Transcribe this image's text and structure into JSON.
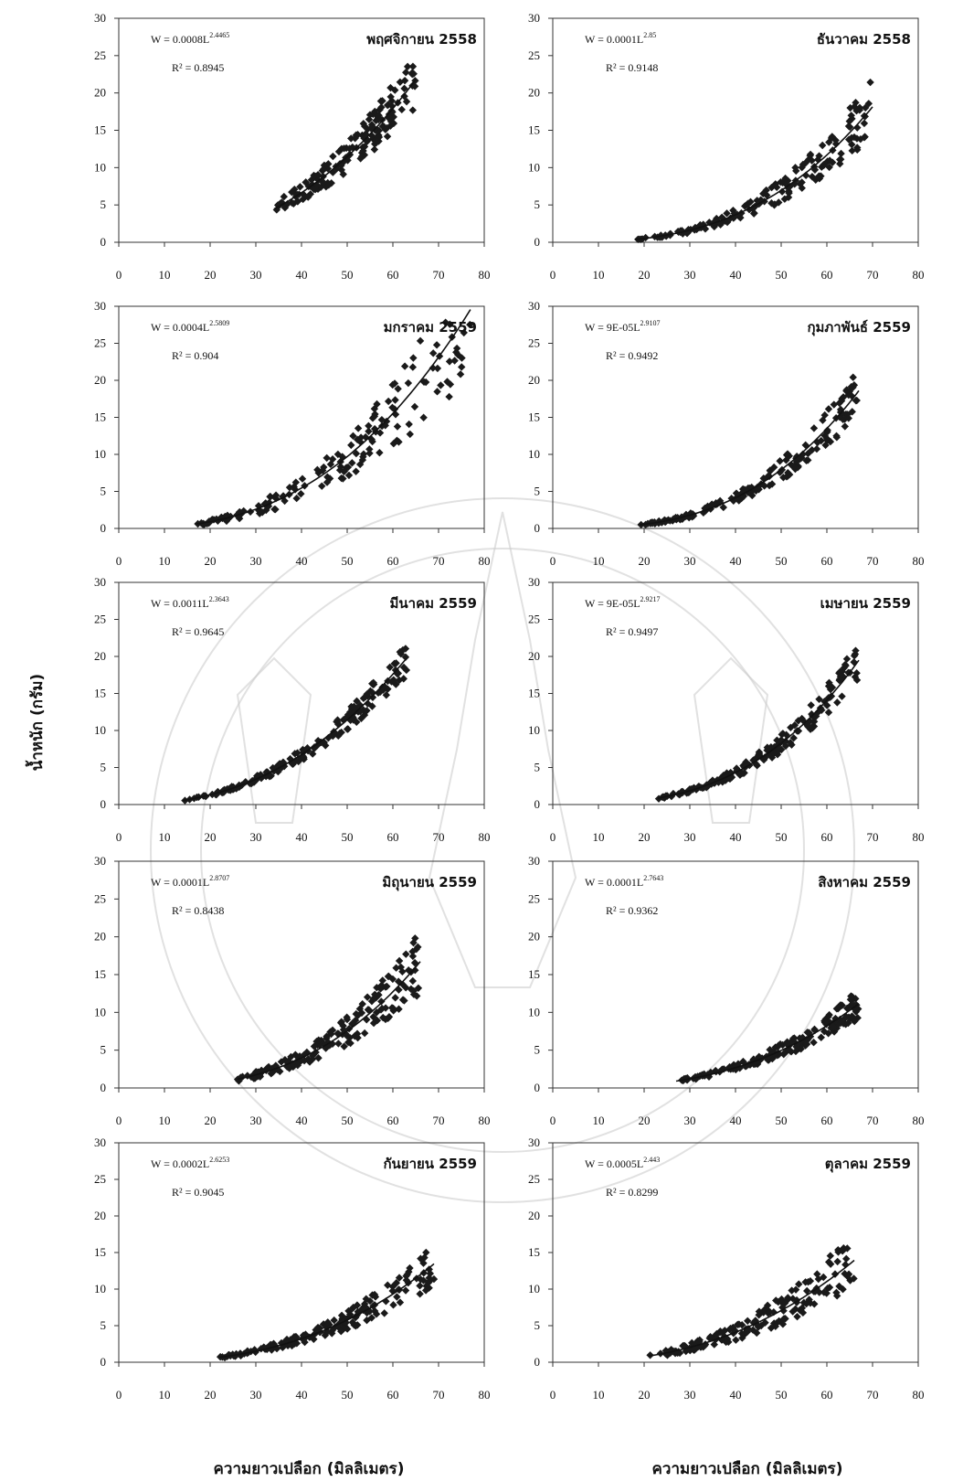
{
  "figure": {
    "ylabel": "น้ำหนัก (กรัม)",
    "xlabel_left": "ความยาวเปลือก (มิลลิเมตร)",
    "xlabel_right": "ความยาวเปลือก (มิลลิเมตร)"
  },
  "chart_data": [
    {
      "type": "scatter",
      "month": "พฤศจิกายน 2558",
      "eq_prefix": "W = 0.0008L",
      "eq_exp": "2.4465",
      "r2": "R² = 0.8945",
      "a": 0.0008,
      "b": 2.4465,
      "xlim": [
        0,
        80
      ],
      "ylim": [
        0,
        30
      ],
      "xticks": [
        0,
        10,
        20,
        30,
        40,
        50,
        60,
        70,
        80
      ],
      "yticks": [
        0,
        5,
        10,
        15,
        20,
        25,
        30
      ],
      "x_range": [
        34,
        65
      ],
      "y_spread": 0.18
    },
    {
      "type": "scatter",
      "month": "ธันวาคม 2558",
      "eq_prefix": "W = 0.0001L",
      "eq_exp": "2.85",
      "r2": "R² = 0.9148",
      "a": 0.0001,
      "b": 2.85,
      "xlim": [
        0,
        80
      ],
      "ylim": [
        0,
        30
      ],
      "xticks": [
        0,
        10,
        20,
        30,
        40,
        50,
        60,
        70,
        80
      ],
      "yticks": [
        0,
        5,
        10,
        15,
        20,
        25,
        30
      ],
      "x_range": [
        18,
        70
      ],
      "y_spread": 0.22
    },
    {
      "type": "scatter",
      "month": "มกราคม 2559",
      "eq_prefix": "W = 0.0004L",
      "eq_exp": "2.5809",
      "r2": "R² = 0.904",
      "a": 0.0004,
      "b": 2.5809,
      "xlim": [
        0,
        80
      ],
      "ylim": [
        0,
        30
      ],
      "xticks": [
        0,
        10,
        20,
        30,
        40,
        50,
        60,
        70,
        80
      ],
      "yticks": [
        0,
        5,
        10,
        15,
        20,
        25,
        30
      ],
      "x_range": [
        17,
        78
      ],
      "y_spread": 0.3
    },
    {
      "type": "scatter",
      "month": "กุมภาพันธ์ 2559",
      "eq_prefix": "W = 9E-05L",
      "eq_exp": "2.9107",
      "r2": "R² = 0.9492",
      "a": 9e-05,
      "b": 2.9107,
      "xlim": [
        0,
        80
      ],
      "ylim": [
        0,
        30
      ],
      "xticks": [
        0,
        10,
        20,
        30,
        40,
        50,
        60,
        70,
        80
      ],
      "yticks": [
        0,
        5,
        10,
        15,
        20,
        25,
        30
      ],
      "x_range": [
        19,
        67
      ],
      "y_spread": 0.18
    },
    {
      "type": "scatter",
      "month": "มีนาคม 2559",
      "eq_prefix": "W = 0.0011L",
      "eq_exp": "2.3643",
      "r2": "R² = 0.9645",
      "a": 0.0011,
      "b": 2.3643,
      "xlim": [
        0,
        80
      ],
      "ylim": [
        0,
        30
      ],
      "xticks": [
        0,
        10,
        20,
        30,
        40,
        50,
        60,
        70,
        80
      ],
      "yticks": [
        0,
        5,
        10,
        15,
        20,
        25,
        30
      ],
      "x_range": [
        14,
        63
      ],
      "y_spread": 0.12
    },
    {
      "type": "scatter",
      "month": "เมษายน 2559",
      "eq_prefix": "W = 9E-05L",
      "eq_exp": "2.9217",
      "r2": "R² = 0.9497",
      "a": 9e-05,
      "b": 2.9217,
      "xlim": [
        0,
        80
      ],
      "ylim": [
        0,
        30
      ],
      "xticks": [
        0,
        10,
        20,
        30,
        40,
        50,
        60,
        70,
        80
      ],
      "yticks": [
        0,
        5,
        10,
        15,
        20,
        25,
        30
      ],
      "x_range": [
        23,
        67
      ],
      "y_spread": 0.15
    },
    {
      "type": "scatter",
      "month": "มิถุนายน 2559",
      "eq_prefix": "W = 0.0001L",
      "eq_exp": "2.8707",
      "r2": "R² = 0.8438",
      "a": 0.0001,
      "b": 2.8707,
      "xlim": [
        0,
        80
      ],
      "ylim": [
        0,
        30
      ],
      "xticks": [
        0,
        10,
        20,
        30,
        40,
        50,
        60,
        70,
        80
      ],
      "yticks": [
        0,
        5,
        10,
        15,
        20,
        25,
        30
      ],
      "x_range": [
        26,
        66
      ],
      "y_spread": 0.25
    },
    {
      "type": "scatter",
      "month": "สิงหาคม 2559",
      "eq_prefix": "W = 0.0001L",
      "eq_exp": "2.7643",
      "r2": "R² = 0.9362",
      "a": 0.0001,
      "b": 2.7643,
      "xlim": [
        0,
        80
      ],
      "ylim": [
        0,
        30
      ],
      "xticks": [
        0,
        10,
        20,
        30,
        40,
        50,
        60,
        70,
        80
      ],
      "yticks": [
        0,
        5,
        10,
        15,
        20,
        25,
        30
      ],
      "x_range": [
        27,
        67
      ],
      "y_spread": 0.18
    },
    {
      "type": "scatter",
      "month": "กันยายน 2559",
      "eq_prefix": "W = 0.0002L",
      "eq_exp": "2.6253",
      "r2": "R² = 0.9045",
      "a": 0.0002,
      "b": 2.6253,
      "xlim": [
        0,
        80
      ],
      "ylim": [
        0,
        30
      ],
      "xticks": [
        0,
        10,
        20,
        30,
        40,
        50,
        60,
        70,
        80
      ],
      "yticks": [
        0,
        5,
        10,
        15,
        20,
        25,
        30
      ],
      "x_range": [
        22,
        69
      ],
      "y_spread": 0.22
    },
    {
      "type": "scatter",
      "month": "ตุลาคม 2559",
      "eq_prefix": "W = 0.0005L",
      "eq_exp": "2.443",
      "r2": "R² = 0.8299",
      "a": 0.0005,
      "b": 2.443,
      "xlim": [
        0,
        80
      ],
      "ylim": [
        0,
        30
      ],
      "xticks": [
        0,
        10,
        20,
        30,
        40,
        50,
        60,
        70,
        80
      ],
      "yticks": [
        0,
        5,
        10,
        15,
        20,
        25,
        30
      ],
      "x_range": [
        21,
        66
      ],
      "y_spread": 0.28
    }
  ]
}
